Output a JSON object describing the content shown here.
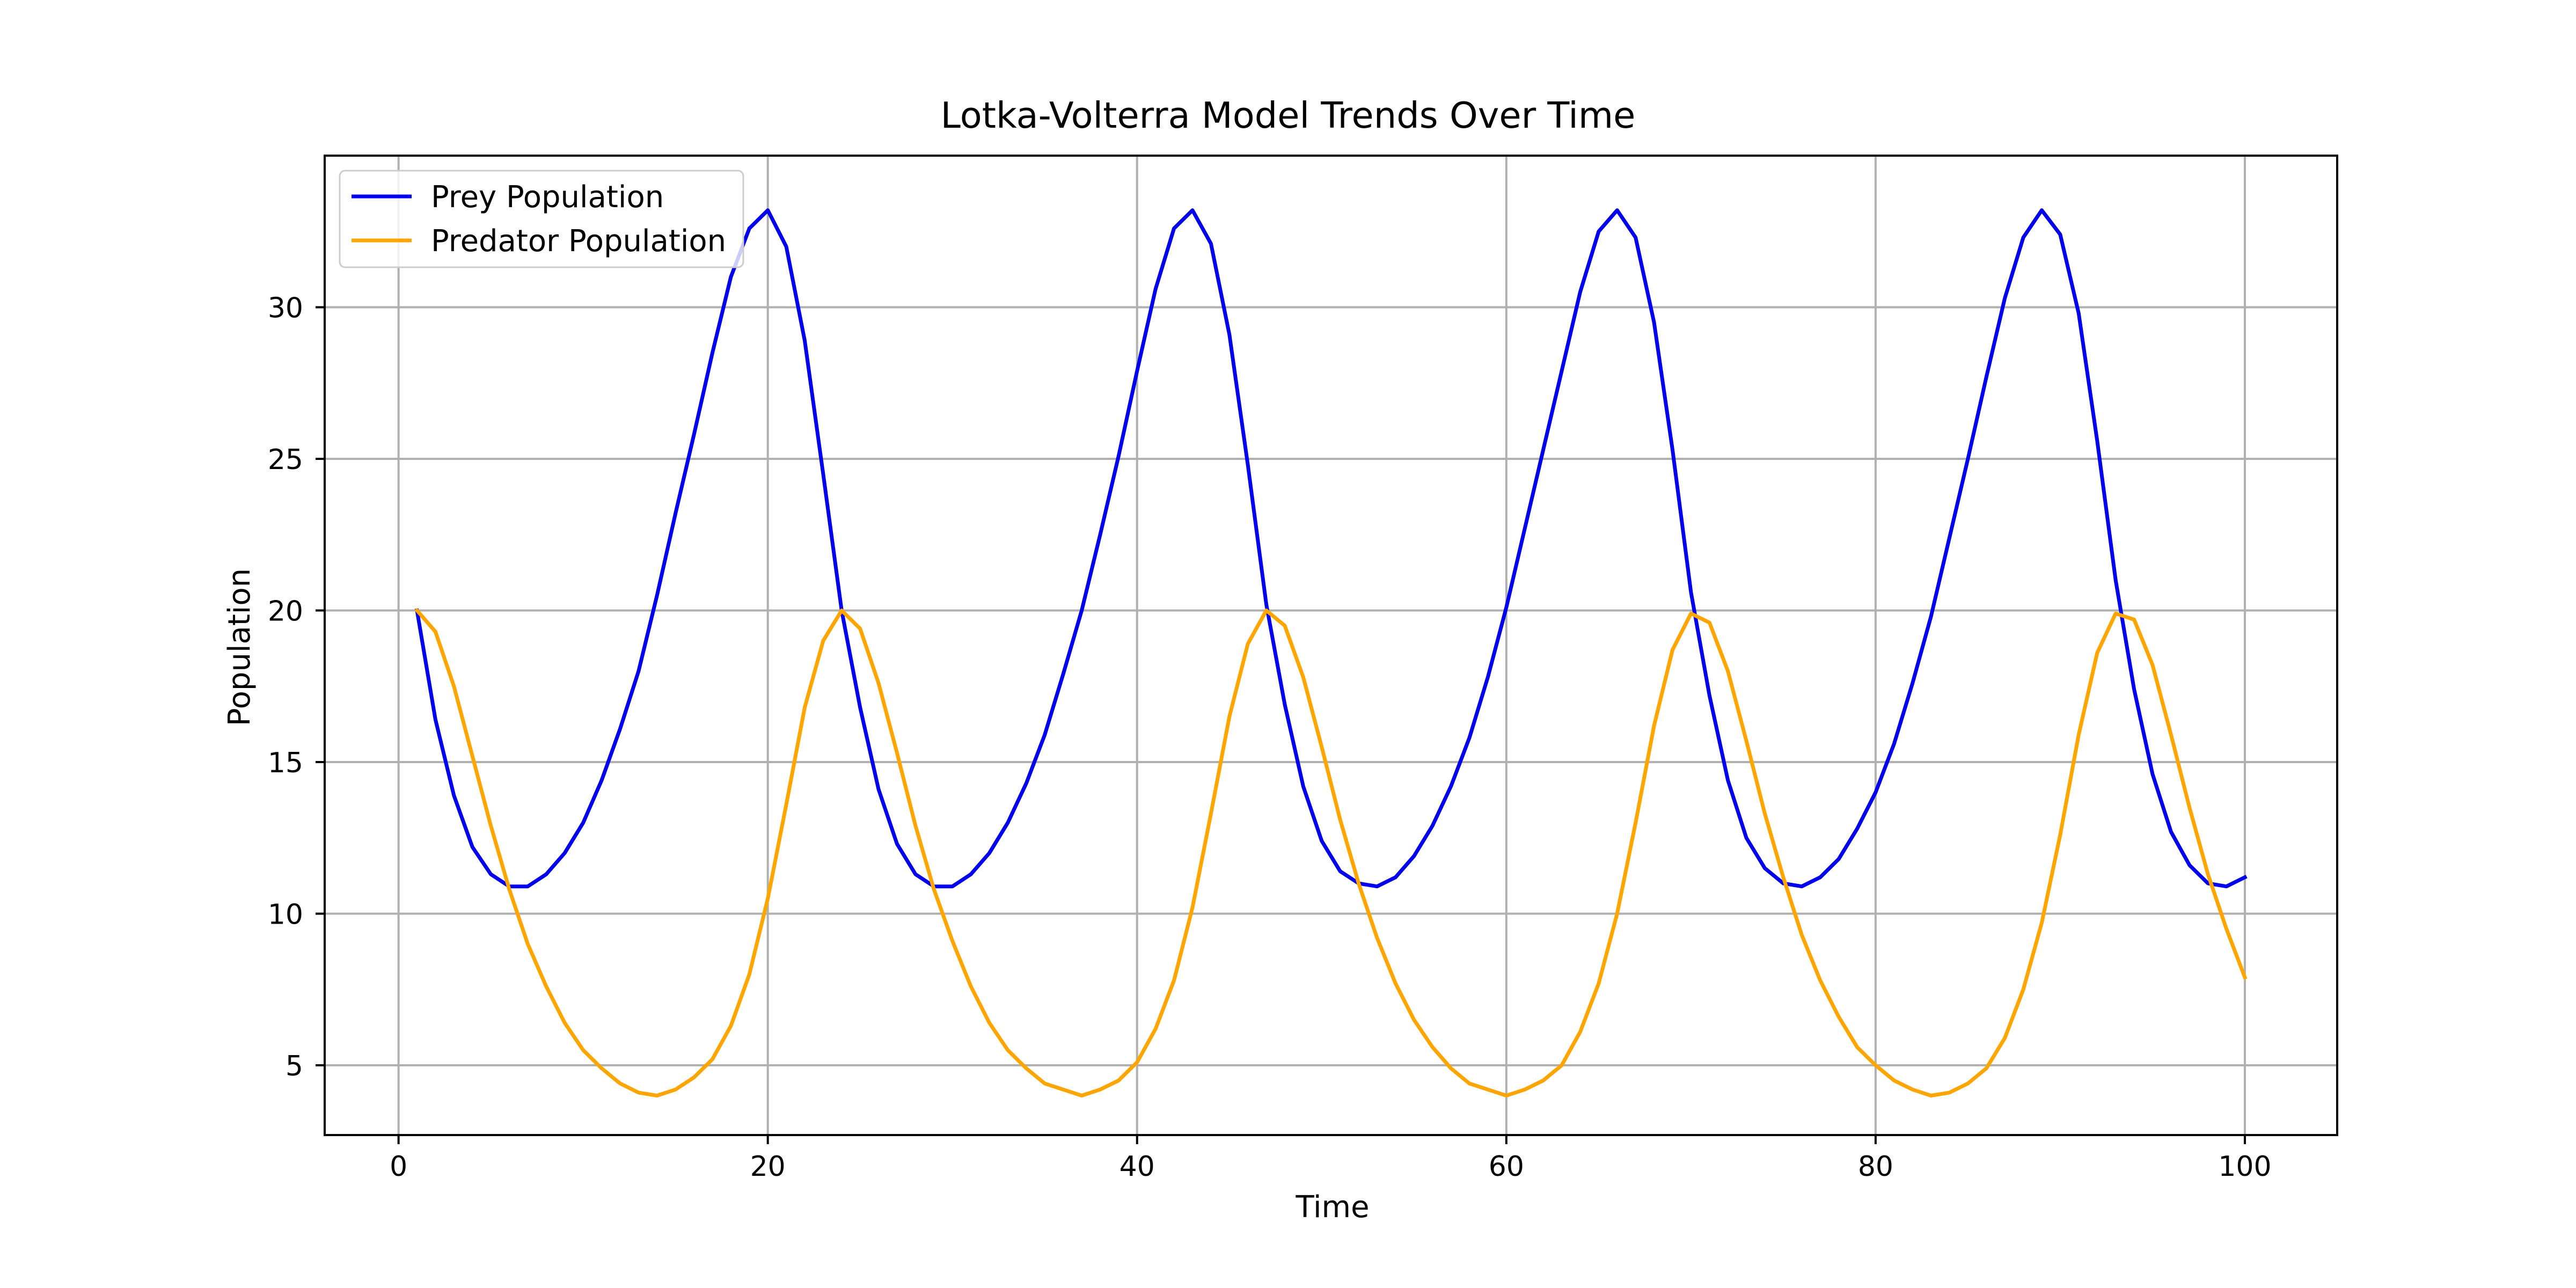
{
  "chart_data": {
    "type": "line",
    "title": "Lotka-Volterra Model Trends Over Time",
    "xlabel": "Time",
    "ylabel": "Population",
    "xlim": [
      -4.0,
      105.0
    ],
    "ylim": [
      2.7,
      35.0
    ],
    "xticks": [
      0,
      20,
      40,
      60,
      80,
      100
    ],
    "yticks": [
      5,
      10,
      15,
      20,
      25,
      30
    ],
    "grid": true,
    "legend": "upper-left",
    "x": [
      1,
      2,
      3,
      4,
      5,
      6,
      7,
      8,
      9,
      10,
      11,
      12,
      13,
      14,
      15,
      16,
      17,
      18,
      19,
      20,
      21,
      22,
      23,
      24,
      25,
      26,
      27,
      28,
      29,
      30,
      31,
      32,
      33,
      34,
      35,
      36,
      37,
      38,
      39,
      40,
      41,
      42,
      43,
      44,
      45,
      46,
      47,
      48,
      49,
      50,
      51,
      52,
      53,
      54,
      55,
      56,
      57,
      58,
      59,
      60,
      61,
      62,
      63,
      64,
      65,
      66,
      67,
      68,
      69,
      70,
      71,
      72,
      73,
      74,
      75,
      76,
      77,
      78,
      79,
      80,
      81,
      82,
      83,
      84,
      85,
      86,
      87,
      88,
      89,
      90,
      91,
      92,
      93,
      94,
      95,
      96,
      97,
      98,
      99,
      100
    ],
    "series": [
      {
        "name": "Prey Population",
        "color": "#0000ee",
        "values": [
          20.0,
          16.4,
          13.9,
          12.2,
          11.3,
          10.9,
          10.9,
          11.3,
          12.0,
          13.0,
          14.4,
          16.1,
          18.0,
          20.5,
          23.2,
          25.8,
          28.5,
          31.0,
          32.6,
          33.2,
          32.0,
          28.9,
          24.5,
          20.0,
          16.8,
          14.1,
          12.3,
          11.3,
          10.9,
          10.9,
          11.3,
          12.0,
          13.0,
          14.3,
          15.9,
          17.9,
          20.0,
          22.5,
          25.1,
          27.9,
          30.6,
          32.6,
          33.2,
          32.1,
          29.1,
          24.8,
          20.2,
          16.9,
          14.2,
          12.4,
          11.4,
          11.0,
          10.9,
          11.2,
          11.9,
          12.9,
          14.2,
          15.8,
          17.8,
          20.1,
          22.7,
          25.3,
          27.9,
          30.5,
          32.5,
          33.2,
          32.3,
          29.5,
          25.3,
          20.6,
          17.2,
          14.4,
          12.5,
          11.5,
          11.0,
          10.9,
          11.2,
          11.8,
          12.8,
          14.0,
          15.6,
          17.6,
          19.8,
          22.4,
          25.0,
          27.7,
          30.3,
          32.3,
          33.2,
          32.4,
          29.8,
          25.6,
          21.0,
          17.4,
          14.6,
          12.7,
          11.6,
          11.0,
          10.9,
          11.2
        ]
      },
      {
        "name": "Predator Population",
        "color": "#ffa500",
        "values": [
          20.0,
          19.3,
          17.5,
          15.2,
          12.9,
          10.8,
          9.0,
          7.6,
          6.4,
          5.5,
          4.9,
          4.4,
          4.1,
          4.0,
          4.2,
          4.6,
          5.2,
          6.3,
          8.0,
          10.5,
          13.6,
          16.8,
          19.0,
          20.0,
          19.4,
          17.6,
          15.3,
          12.9,
          10.8,
          9.1,
          7.6,
          6.4,
          5.5,
          4.9,
          4.4,
          4.2,
          4.0,
          4.2,
          4.5,
          5.1,
          6.2,
          7.8,
          10.2,
          13.3,
          16.5,
          18.9,
          20.0,
          19.5,
          17.8,
          15.5,
          13.1,
          11.0,
          9.2,
          7.7,
          6.5,
          5.6,
          4.9,
          4.4,
          4.2,
          4.0,
          4.2,
          4.5,
          5.0,
          6.1,
          7.7,
          10.0,
          13.0,
          16.2,
          18.7,
          19.9,
          19.6,
          18.0,
          15.7,
          13.3,
          11.2,
          9.3,
          7.8,
          6.6,
          5.6,
          5.0,
          4.5,
          4.2,
          4.0,
          4.1,
          4.4,
          4.9,
          5.9,
          7.5,
          9.7,
          12.6,
          15.9,
          18.6,
          19.9,
          19.7,
          18.2,
          15.9,
          13.5,
          11.3,
          9.5,
          7.9
        ]
      }
    ]
  }
}
